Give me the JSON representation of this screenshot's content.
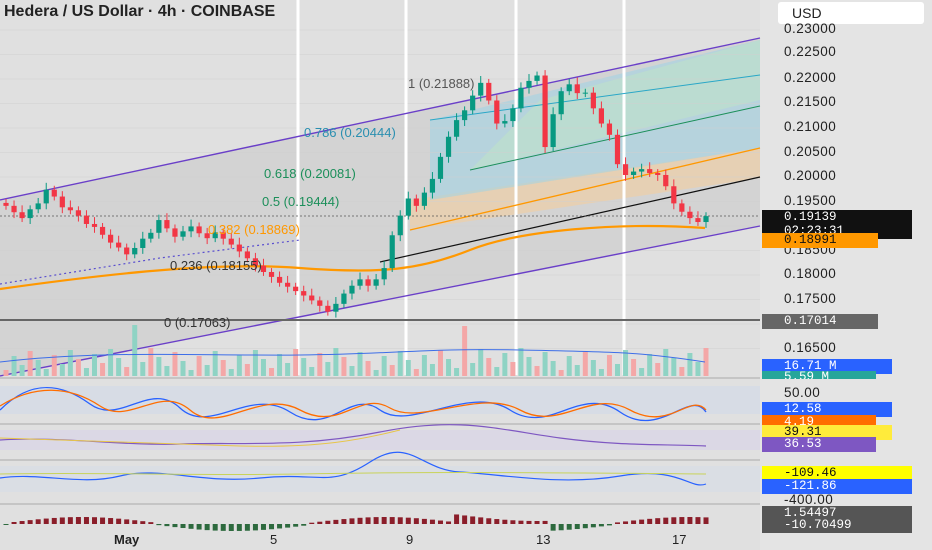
{
  "header": {
    "title": "Hedera / US Dollar · 4h · COINBASE",
    "currency": "USD"
  },
  "chart_data": {
    "type": "candlestick",
    "title": "Hedera / US Dollar · 4h · COINBASE",
    "price_axis": {
      "labels": [
        "0.23000",
        "0.22500",
        "0.22000",
        "0.21500",
        "0.21000",
        "0.20500",
        "0.20000",
        "0.19500",
        "0.18500",
        "0.18000",
        "0.17500",
        "0.16500"
      ],
      "ylim": [
        0.162,
        0.232
      ]
    },
    "x_axis": {
      "labels": [
        "May",
        "5",
        "9",
        "13",
        "17"
      ]
    },
    "fib_levels": [
      {
        "label": "1 (0.21888)",
        "value": 0.21888
      },
      {
        "label": "0.786 (0.20444)",
        "value": 0.20444
      },
      {
        "label": "0.618 (0.20081)",
        "value": 0.20081
      },
      {
        "label": "0.5 (0.19444)",
        "value": 0.19444
      },
      {
        "label": "0.382 (0.18869)",
        "value": 0.18869
      },
      {
        "label": "0.236 (0.18155)",
        "value": 0.18155
      },
      {
        "label": "0 (0.17063)",
        "value": 0.17063
      }
    ],
    "price_badges": [
      {
        "label": "0.19139",
        "value": 0.19139,
        "color": "#111111"
      },
      {
        "label": "02:23:31",
        "value": 0.1905,
        "color": "#111111"
      },
      {
        "label": "0.18991",
        "value": 0.18991,
        "color": "#ff9800"
      },
      {
        "label": "0.17014",
        "value": 0.17014,
        "color": "#666666"
      }
    ],
    "closes": [
      0.1935,
      0.1922,
      0.191,
      0.1928,
      0.194,
      0.1968,
      0.1954,
      0.1932,
      0.1926,
      0.1915,
      0.1898,
      0.1892,
      0.1876,
      0.186,
      0.185,
      0.1836,
      0.1849,
      0.1868,
      0.188,
      0.1906,
      0.1889,
      0.1872,
      0.1883,
      0.1893,
      0.1879,
      0.1869,
      0.1881,
      0.1868,
      0.1856,
      0.1842,
      0.1828,
      0.1813,
      0.18,
      0.179,
      0.1778,
      0.177,
      0.1761,
      0.1752,
      0.1742,
      0.1731,
      0.1719,
      0.1735,
      0.1756,
      0.1772,
      0.1785,
      0.1772,
      0.1785,
      0.1808,
      0.1875,
      0.1915,
      0.195,
      0.1935,
      0.1962,
      0.199,
      0.2035,
      0.2076,
      0.211,
      0.213,
      0.216,
      0.2186,
      0.215,
      0.2103,
      0.2108,
      0.2134,
      0.2176,
      0.219,
      0.2201,
      0.2055,
      0.2122,
      0.2169,
      0.2183,
      0.2165,
      0.2166,
      0.2134,
      0.2103,
      0.208,
      0.202,
      0.1998,
      0.2005,
      0.201,
      0.2002,
      0.1998,
      0.1975,
      0.194,
      0.1923,
      0.191,
      0.1902,
      0.1914
    ],
    "indicators": {
      "volume": [
        "16.71 M",
        "5.59 M"
      ],
      "stoch": [
        "50.00",
        "12.58",
        "4.19"
      ],
      "rsi": [
        "39.31",
        "36.53"
      ],
      "cci": [
        "-109.46",
        "-121.86",
        "-400.00"
      ],
      "macd": [
        "1.54497",
        "-10.70499"
      ]
    }
  },
  "colors": {
    "up": "#089981",
    "down": "#f23645",
    "ema": "#ff9800",
    "channel": "#6a3fc8",
    "volume_badge": "#2962ff",
    "volume_badge2": "#26a69a",
    "stoch_k": "#2962ff",
    "stoch_d": "#ff6d00",
    "rsi": "#7e57c2",
    "cci_hi": "#ffeb3b",
    "cci_lo": "#2962ff"
  }
}
